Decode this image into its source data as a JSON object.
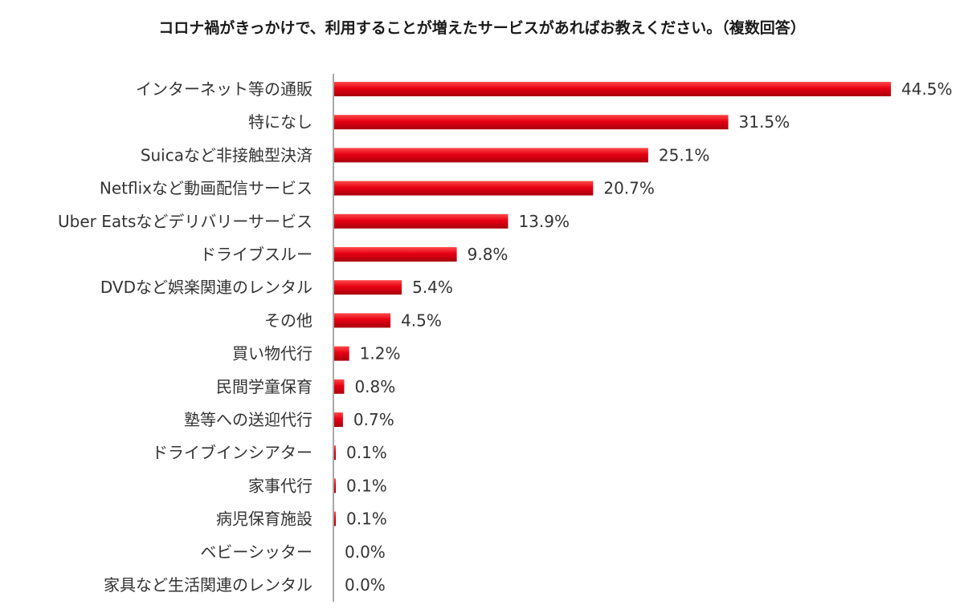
{
  "chart_data": {
    "type": "bar",
    "orientation": "horizontal",
    "title": "コロナ禍がきっかけで、利用することが増えたサービスがあればお教えください。（複数回答）",
    "categories": [
      "インターネット等の通販",
      "特になし",
      "Suicaなど非接触型決済",
      "Netflixなど動画配信サービス",
      "Uber Eatsなどデリバリーサービス",
      "ドライブスルー",
      "DVDなど娯楽関連のレンタル",
      "その他",
      "買い物代行",
      "民間学童保育",
      "塾等への送迎代行",
      "ドライブインシアター",
      "家事代行",
      "病児保育施設",
      "ベビーシッター",
      "家具など生活関連のレンタル"
    ],
    "values": [
      44.5,
      31.5,
      25.1,
      20.7,
      13.9,
      9.8,
      5.4,
      4.5,
      1.2,
      0.8,
      0.7,
      0.1,
      0.1,
      0.1,
      0.0,
      0.0
    ],
    "value_labels": [
      "44.5%",
      "31.5%",
      "25.1%",
      "20.7%",
      "13.9%",
      "9.8%",
      "5.4%",
      "4.5%",
      "1.2%",
      "0.8%",
      "0.7%",
      "0.1%",
      "0.1%",
      "0.1%",
      "0.0%",
      "0.0%"
    ],
    "unit": "%",
    "xlim": [
      0,
      44.5
    ],
    "grid": false,
    "legend": "none",
    "bar_color": "#e60012",
    "bar_color_dark": "#a8000d",
    "bar_color_light": "#ff4a4a"
  }
}
